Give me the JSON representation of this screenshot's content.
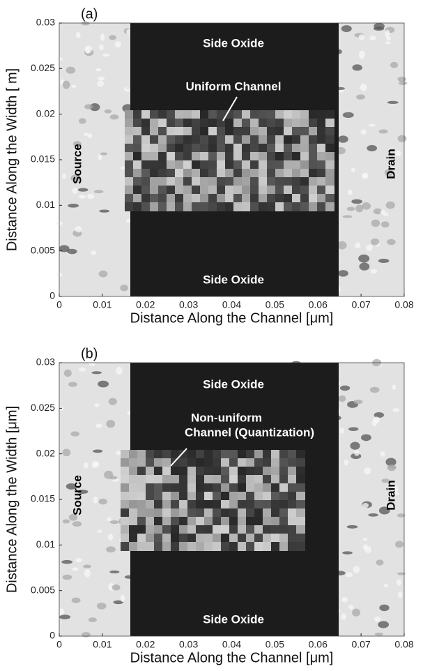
{
  "chart_data": [
    {
      "type": "image",
      "panel_label": "(a)",
      "xlabel": "Distance Along the Channel [μm]",
      "ylabel": "Distance Along the Width [ m]",
      "xlim": [
        0,
        0.08
      ],
      "ylim": [
        0,
        0.03
      ],
      "xticks": [
        0,
        0.01,
        0.02,
        0.03,
        0.04,
        0.05,
        0.06,
        0.07,
        0.08
      ],
      "yticks": [
        0,
        0.005,
        0.01,
        0.015,
        0.02,
        0.025,
        0.03
      ],
      "annotations": [
        "Side Oxide",
        "Uniform Channel",
        "Source",
        "Drain",
        "Side Oxide"
      ]
    },
    {
      "type": "image",
      "panel_label": "(b)",
      "xlabel": "Distance Along the Channel [μm]",
      "ylabel": "Distance Along the Width [μm]",
      "xlim": [
        0,
        0.08
      ],
      "ylim": [
        0,
        0.03
      ],
      "xticks": [
        0,
        0.01,
        0.02,
        0.03,
        0.04,
        0.05,
        0.06,
        0.07,
        0.08
      ],
      "yticks": [
        0,
        0.005,
        0.01,
        0.015,
        0.02,
        0.025,
        0.03
      ],
      "annotations": [
        "Side Oxide",
        "Non-uniform",
        "Channel (Quantization)",
        "Source",
        "Drain",
        "Side Oxide"
      ]
    }
  ]
}
